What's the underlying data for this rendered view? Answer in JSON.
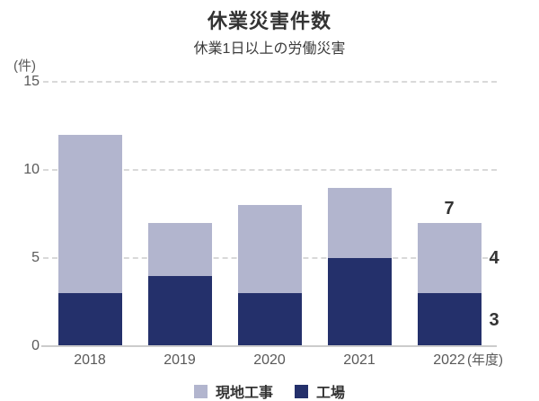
{
  "page": {
    "title": "休業災害件数",
    "subtitle": "休業1日以上の労働災害"
  },
  "chart_data": {
    "type": "bar",
    "stacked": true,
    "title": "休業災害件数",
    "subtitle": "休業1日以上の労働災害",
    "y_unit_label": "(件)",
    "x_suffix_label": "(年度)",
    "categories": [
      "2018",
      "2019",
      "2020",
      "2021",
      "2022"
    ],
    "series": [
      {
        "name": "工場",
        "color": "#24306b",
        "values": [
          3,
          4,
          3,
          5,
          3
        ]
      },
      {
        "name": "現地工事",
        "color": "#b2b5ce",
        "values": [
          9,
          3,
          5,
          4,
          4
        ]
      }
    ],
    "totals": [
      12,
      7,
      8,
      9,
      7
    ],
    "yticks": [
      0,
      5,
      10,
      15
    ],
    "ylim": [
      0,
      15
    ],
    "grid": "dashed-horizontal",
    "legend_position": "bottom",
    "legend": [
      {
        "label": "現地工事",
        "color": "#b2b5ce"
      },
      {
        "label": "工場",
        "color": "#24306b"
      }
    ],
    "annotations": [
      {
        "category": "2022",
        "label": "7",
        "refers_to": "total",
        "position": "above-bar"
      },
      {
        "category": "2022",
        "label": "4",
        "refers_to": "現地工事",
        "position": "right-of-segment"
      },
      {
        "category": "2022",
        "label": "3",
        "refers_to": "工場",
        "position": "right-of-segment"
      }
    ],
    "colors": {
      "background": "#ffffff",
      "title_text": "#333333",
      "axis_text": "#595959",
      "gridline": "#d9d9d9",
      "axis_line": "#cccccc",
      "annotation_text": "#333333"
    }
  }
}
